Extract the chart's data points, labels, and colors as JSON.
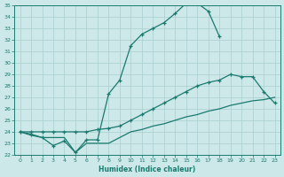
{
  "xlabel": "Humidex (Indice chaleur)",
  "xlim": [
    -0.5,
    23.5
  ],
  "ylim": [
    22,
    35
  ],
  "yticks": [
    22,
    23,
    24,
    25,
    26,
    27,
    28,
    29,
    30,
    31,
    32,
    33,
    34,
    35
  ],
  "xticks": [
    0,
    1,
    2,
    3,
    4,
    5,
    6,
    7,
    8,
    9,
    10,
    11,
    12,
    13,
    14,
    15,
    16,
    17,
    18,
    19,
    20,
    21,
    22,
    23
  ],
  "line_color": "#1a7a6e",
  "bg_color": "#cce8e8",
  "grid_color": "#aacece",
  "line1_x": [
    0,
    1,
    2,
    3,
    4,
    5,
    6,
    7,
    8,
    9,
    10,
    11,
    12,
    13,
    14,
    15,
    16,
    17,
    18
  ],
  "line1_y": [
    24.0,
    23.8,
    23.5,
    22.8,
    23.2,
    22.2,
    23.3,
    23.3,
    27.3,
    28.5,
    31.5,
    32.5,
    33.0,
    33.5,
    34.3,
    35.2,
    35.2,
    34.5,
    32.3
  ],
  "line2_x": [
    0,
    1,
    2,
    3,
    4,
    5,
    6,
    7,
    8,
    9,
    10,
    11,
    12,
    13,
    14,
    15,
    16,
    17,
    18,
    19,
    20,
    21,
    22,
    23
  ],
  "line2_y": [
    24.0,
    24.0,
    24.0,
    24.0,
    24.0,
    24.0,
    24.0,
    24.2,
    24.3,
    24.5,
    25.0,
    25.5,
    26.0,
    26.5,
    27.0,
    27.5,
    28.0,
    28.3,
    28.5,
    29.0,
    28.8,
    28.8,
    27.5,
    26.5
  ],
  "line3_x": [
    0,
    1,
    2,
    3,
    4,
    5,
    6,
    7,
    8,
    9,
    10,
    11,
    12,
    13,
    14,
    15,
    16,
    17,
    18,
    19,
    20,
    21,
    22,
    23
  ],
  "line3_y": [
    24.0,
    23.7,
    23.5,
    23.5,
    23.5,
    22.2,
    23.0,
    23.0,
    23.0,
    23.5,
    24.0,
    24.2,
    24.5,
    24.7,
    25.0,
    25.3,
    25.5,
    25.8,
    26.0,
    26.3,
    26.5,
    26.7,
    26.8,
    27.0
  ]
}
